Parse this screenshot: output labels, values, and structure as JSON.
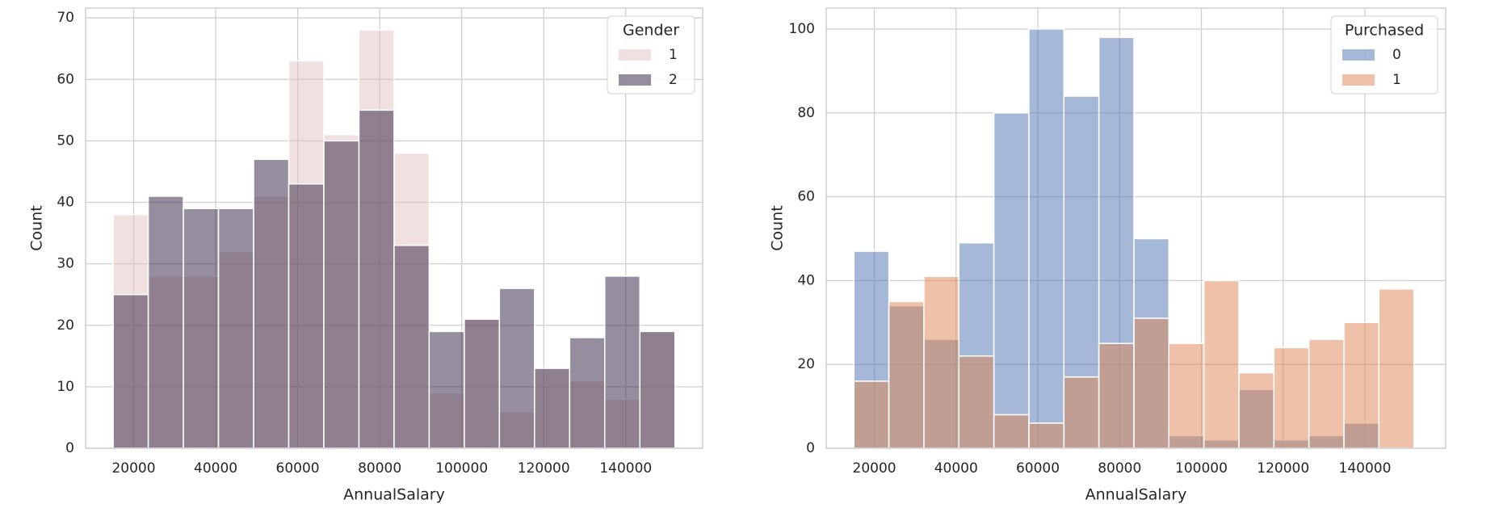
{
  "chart_data": [
    {
      "type": "histogram",
      "xlabel": "AnnualSalary",
      "ylabel": "Count",
      "legend_title": "Gender",
      "legend": "upper right",
      "bins": [
        15000,
        23562.5,
        32125,
        40687.5,
        49250,
        57812.5,
        66375,
        74937.5,
        83500,
        92062.5,
        100625,
        109187.5,
        117750,
        126312.5,
        134875,
        143437.5,
        152000
      ],
      "series": [
        {
          "name": "1",
          "color": "#e1c1c1",
          "values": [
            38,
            28,
            28,
            32,
            41,
            63,
            51,
            68,
            48,
            9,
            21,
            6,
            13,
            11,
            8,
            19
          ]
        },
        {
          "name": "2",
          "color": "#2d1e3e",
          "values": [
            25,
            41,
            39,
            39,
            47,
            43,
            50,
            55,
            33,
            19,
            21,
            26,
            13,
            18,
            28,
            19
          ]
        }
      ],
      "xlim": [
        8280,
        158750
      ],
      "xticks": [
        20000,
        40000,
        60000,
        80000,
        100000,
        120000,
        140000
      ],
      "ylim": [
        0,
        71.6
      ],
      "yticks": [
        0,
        10,
        20,
        30,
        40,
        50,
        60,
        70
      ],
      "grid": true
    },
    {
      "type": "histogram",
      "xlabel": "AnnualSalary",
      "ylabel": "Count",
      "legend_title": "Purchased",
      "legend": "upper right",
      "bins": [
        15000,
        23562.5,
        32125,
        40687.5,
        49250,
        57812.5,
        66375,
        74937.5,
        83500,
        92062.5,
        100625,
        109187.5,
        117750,
        126312.5,
        134875,
        143437.5,
        152000
      ],
      "series": [
        {
          "name": "0",
          "color": "#4c72b0",
          "values": [
            47,
            34,
            26,
            49,
            80,
            100,
            84,
            98,
            50,
            3,
            2,
            14,
            2,
            3,
            6,
            0
          ]
        },
        {
          "name": "1",
          "color": "#dd8452",
          "values": [
            16,
            35,
            41,
            22,
            8,
            6,
            17,
            25,
            31,
            25,
            40,
            18,
            24,
            26,
            30,
            38
          ]
        }
      ],
      "xlim": [
        8235,
        159765
      ],
      "xticks": [
        20000,
        40000,
        60000,
        80000,
        100000,
        120000,
        140000
      ],
      "ylim": [
        0,
        105
      ],
      "yticks": [
        0,
        20,
        40,
        60,
        80,
        100
      ],
      "grid": true
    }
  ]
}
